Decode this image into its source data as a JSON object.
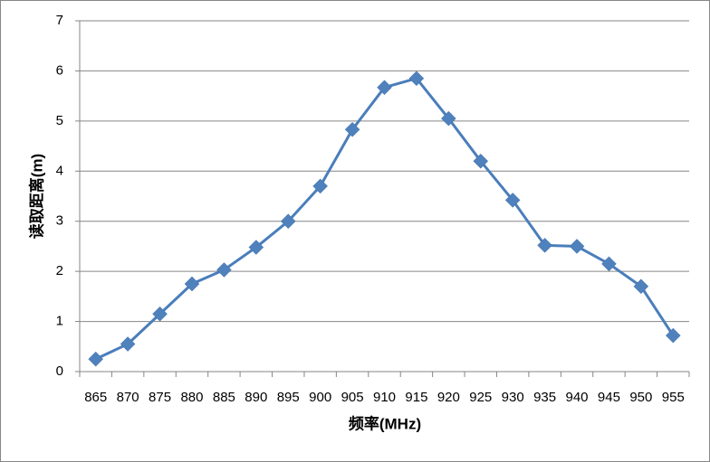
{
  "chart_data": {
    "type": "line",
    "x_label": "频率(MHz)",
    "y_label": "读取距离(m)",
    "categories": [
      "865",
      "870",
      "875",
      "880",
      "885",
      "890",
      "895",
      "900",
      "905",
      "910",
      "915",
      "920",
      "925",
      "930",
      "935",
      "940",
      "945",
      "950",
      "955"
    ],
    "values": [
      0.25,
      0.55,
      1.15,
      1.75,
      2.03,
      2.48,
      3.0,
      3.7,
      4.83,
      5.67,
      5.85,
      5.05,
      4.2,
      3.42,
      2.52,
      2.5,
      2.15,
      1.7,
      0.72
    ],
    "color": "#4a7ebb",
    "ylim": [
      0,
      7
    ],
    "yticks": [
      0,
      1,
      2,
      3,
      4,
      5,
      6,
      7
    ],
    "grid": true
  }
}
